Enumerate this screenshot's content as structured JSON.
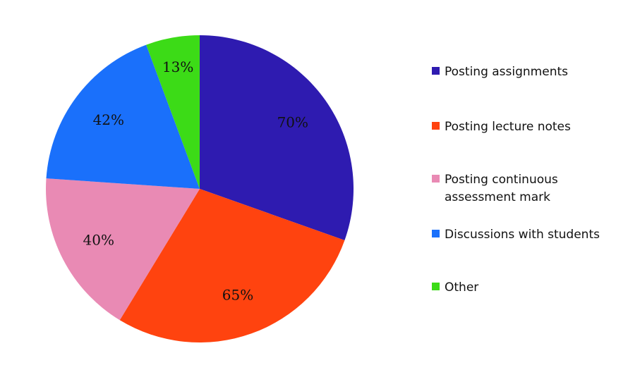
{
  "chart_data": {
    "type": "pie",
    "title": "",
    "slices": [
      {
        "name": "Posting assignments",
        "value": 70,
        "label": "70%",
        "color": "#2E1BB0"
      },
      {
        "name": "Posting lecture notes",
        "value": 65,
        "label": "65%",
        "color": "#FF430F"
      },
      {
        "name": "Posting continuous assessment mark",
        "value": 40,
        "label": "40%",
        "color": "#E98AB4"
      },
      {
        "name": "Discussions with students",
        "value": 42,
        "label": "42%",
        "color": "#1A70FB"
      },
      {
        "name": "Other",
        "value": 13,
        "label": "13%",
        "color": "#3CDB17"
      }
    ],
    "legend_position": "right"
  },
  "legend": {
    "items": [
      {
        "lines": [
          "Posting assignments"
        ],
        "color": "#2E1BB0"
      },
      {
        "lines": [
          "Posting lecture notes"
        ],
        "color": "#FF430F"
      },
      {
        "lines": [
          "Posting continuous",
          "assessment mark"
        ],
        "color": "#E98AB4"
      },
      {
        "lines": [
          "Discussions with students"
        ],
        "color": "#1A70FB"
      },
      {
        "lines": [
          "Other"
        ],
        "color": "#3CDB17"
      }
    ]
  }
}
